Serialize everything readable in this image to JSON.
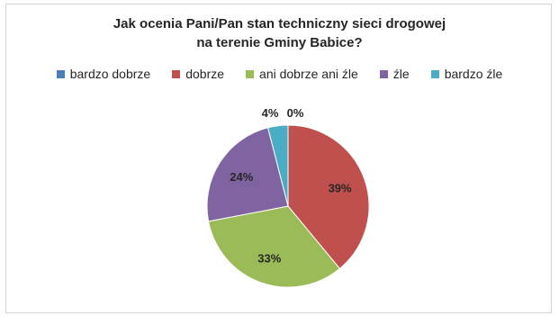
{
  "chart_data": {
    "type": "pie",
    "title_lines": [
      "Jak ocenia Pani/Pan stan techniczny sieci drogowej",
      "na terenie Gminy Babice?"
    ],
    "categories": [
      "bardzo dobrze",
      "dobrze",
      "ani dobrze ani źle",
      "źle",
      "bardzo źle"
    ],
    "values": [
      0,
      39,
      33,
      24,
      4
    ],
    "labels": [
      "0%",
      "39%",
      "33%",
      "24%",
      "4%"
    ],
    "colors": [
      "#4a7ebb",
      "#c0504d",
      "#9bbb59",
      "#8064a2",
      "#4bacc6"
    ],
    "legend_position": "top",
    "start_angle_deg": 0,
    "direction": "clockwise"
  }
}
